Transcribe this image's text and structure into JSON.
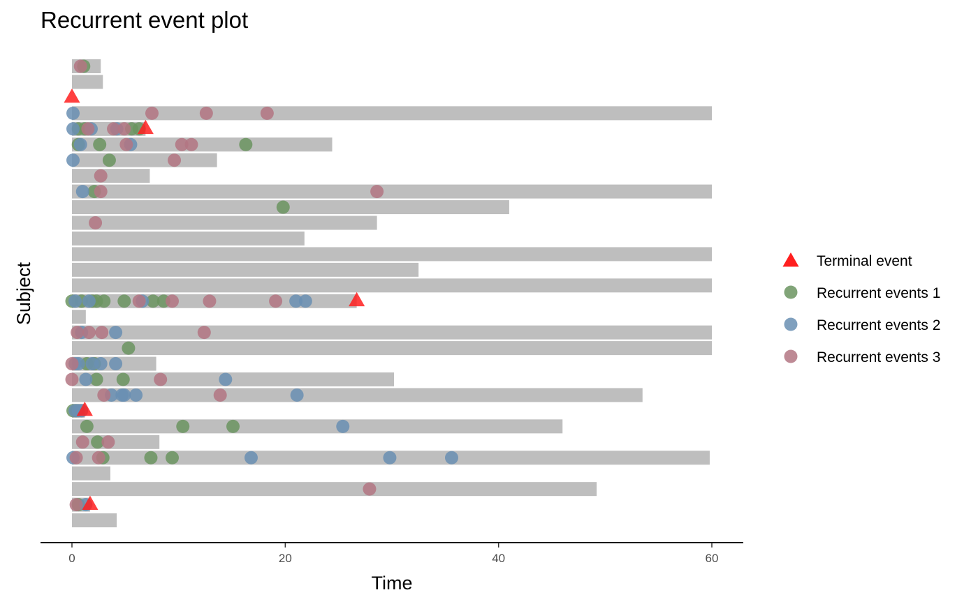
{
  "chart_data": {
    "type": "scatter",
    "title": "Recurrent event plot",
    "xlabel": "Time",
    "ylabel": "Subject",
    "xlim": [
      -2.9,
      63
    ],
    "xticks": [
      0,
      20,
      40,
      60
    ],
    "grid": false,
    "legend_position": "right",
    "colors": {
      "bar": "#bebebe",
      "terminal": "#ff1f1f",
      "rec1": "#6b9460",
      "rec2": "#6a8fb3",
      "rec3": "#b37583"
    },
    "legend": [
      {
        "key": "terminal",
        "label": "Terminal event",
        "shape": "triangle"
      },
      {
        "key": "rec1",
        "label": "Recurrent events 1",
        "shape": "circle"
      },
      {
        "key": "rec2",
        "label": "Recurrent events 2",
        "shape": "circle"
      },
      {
        "key": "rec3",
        "label": "Recurrent events 3",
        "shape": "circle"
      }
    ],
    "subjects": [
      {
        "stop": 2.7,
        "rec1": [
          1.1
        ],
        "rec2": [],
        "rec3": [
          0.8
        ],
        "terminal": null
      },
      {
        "stop": 2.9,
        "rec1": [],
        "rec2": [],
        "rec3": [],
        "terminal": null
      },
      {
        "stop": 0.0,
        "rec1": [],
        "rec2": [],
        "rec3": [],
        "terminal": 0.0
      },
      {
        "stop": 60.0,
        "rec1": [],
        "rec2": [
          0.1
        ],
        "rec3": [
          7.5,
          12.6,
          18.3
        ],
        "terminal": null
      },
      {
        "stop": 6.9,
        "rec1": [
          0.6,
          1.2,
          5.6,
          6.3
        ],
        "rec2": [
          0.1,
          1.8,
          4.2
        ],
        "rec3": [
          1.5,
          3.9,
          4.9
        ],
        "terminal": 6.9
      },
      {
        "stop": 24.4,
        "rec1": [
          0.6,
          2.6,
          16.3
        ],
        "rec2": [
          0.8,
          5.5
        ],
        "rec3": [
          5.1,
          10.3,
          11.2
        ],
        "terminal": null
      },
      {
        "stop": 13.6,
        "rec1": [
          3.5
        ],
        "rec2": [
          0.1
        ],
        "rec3": [
          9.6
        ],
        "terminal": null
      },
      {
        "stop": 7.3,
        "rec1": [],
        "rec2": [],
        "rec3": [
          2.7
        ],
        "terminal": null
      },
      {
        "stop": 60.0,
        "rec1": [
          2.1
        ],
        "rec2": [
          1.0
        ],
        "rec3": [
          2.7,
          28.6
        ],
        "terminal": null
      },
      {
        "stop": 41.0,
        "rec1": [
          19.8
        ],
        "rec2": [],
        "rec3": [],
        "terminal": null
      },
      {
        "stop": 28.6,
        "rec1": [],
        "rec2": [],
        "rec3": [
          2.2
        ],
        "terminal": null
      },
      {
        "stop": 21.8,
        "rec1": [],
        "rec2": [],
        "rec3": [],
        "terminal": null
      },
      {
        "stop": 60.0,
        "rec1": [],
        "rec2": [],
        "rec3": [],
        "terminal": null
      },
      {
        "stop": 32.5,
        "rec1": [],
        "rec2": [],
        "rec3": [],
        "terminal": null
      },
      {
        "stop": 60.0,
        "rec1": [],
        "rec2": [],
        "rec3": [],
        "terminal": null
      },
      {
        "stop": 26.7,
        "rec1": [
          0.0,
          0.9,
          1.9,
          2.3,
          3.0,
          4.9,
          7.6,
          8.6
        ],
        "rec2": [
          0.3,
          1.6,
          6.6,
          21.0,
          21.9
        ],
        "rec3": [
          6.3,
          9.4,
          12.9,
          19.1
        ],
        "terminal": 26.7
      },
      {
        "stop": 1.3,
        "rec1": [],
        "rec2": [],
        "rec3": [],
        "terminal": null
      },
      {
        "stop": 60.0,
        "rec1": [],
        "rec2": [
          0.9,
          4.1
        ],
        "rec3": [
          0.5,
          1.6,
          2.8,
          12.4
        ],
        "terminal": null
      },
      {
        "stop": 60.0,
        "rec1": [
          5.3
        ],
        "rec2": [],
        "rec3": [],
        "terminal": null
      },
      {
        "stop": 7.9,
        "rec1": [
          1.4,
          2.1
        ],
        "rec2": [
          0.3,
          0.6,
          1.9,
          2.7,
          4.1
        ],
        "rec3": [
          0.0
        ],
        "terminal": null
      },
      {
        "stop": 30.2,
        "rec1": [
          2.3,
          4.8
        ],
        "rec2": [
          1.3,
          14.4
        ],
        "rec3": [
          0.0,
          8.3
        ],
        "terminal": null
      },
      {
        "stop": 53.5,
        "rec1": [],
        "rec2": [
          3.7,
          4.7,
          4.9,
          6.0,
          21.1
        ],
        "rec3": [
          3.0,
          13.9
        ],
        "terminal": null
      },
      {
        "stop": 1.2,
        "rec1": [
          0.1,
          0.4
        ],
        "rec2": [
          0.3,
          0.6,
          0.9
        ],
        "rec3": [],
        "terminal": 1.2
      },
      {
        "stop": 46.0,
        "rec1": [
          1.4,
          10.4,
          15.1
        ],
        "rec2": [
          25.4
        ],
        "rec3": [],
        "terminal": null
      },
      {
        "stop": 8.2,
        "rec1": [
          2.4
        ],
        "rec2": [],
        "rec3": [
          1.0,
          3.4
        ],
        "terminal": null
      },
      {
        "stop": 59.8,
        "rec1": [
          2.9,
          7.4,
          9.4
        ],
        "rec2": [
          0.1,
          16.8,
          29.8,
          35.6
        ],
        "rec3": [
          0.4,
          2.5
        ],
        "terminal": null
      },
      {
        "stop": 3.6,
        "rec1": [],
        "rec2": [],
        "rec3": [],
        "terminal": null
      },
      {
        "stop": 49.2,
        "rec1": [],
        "rec2": [],
        "rec3": [
          27.9
        ],
        "terminal": null
      },
      {
        "stop": 1.7,
        "rec1": [
          0.6
        ],
        "rec2": [
          1.3
        ],
        "rec3": [
          0.4
        ],
        "terminal": 1.7
      },
      {
        "stop": 4.2,
        "rec1": [],
        "rec2": [],
        "rec3": [],
        "terminal": null
      }
    ]
  }
}
